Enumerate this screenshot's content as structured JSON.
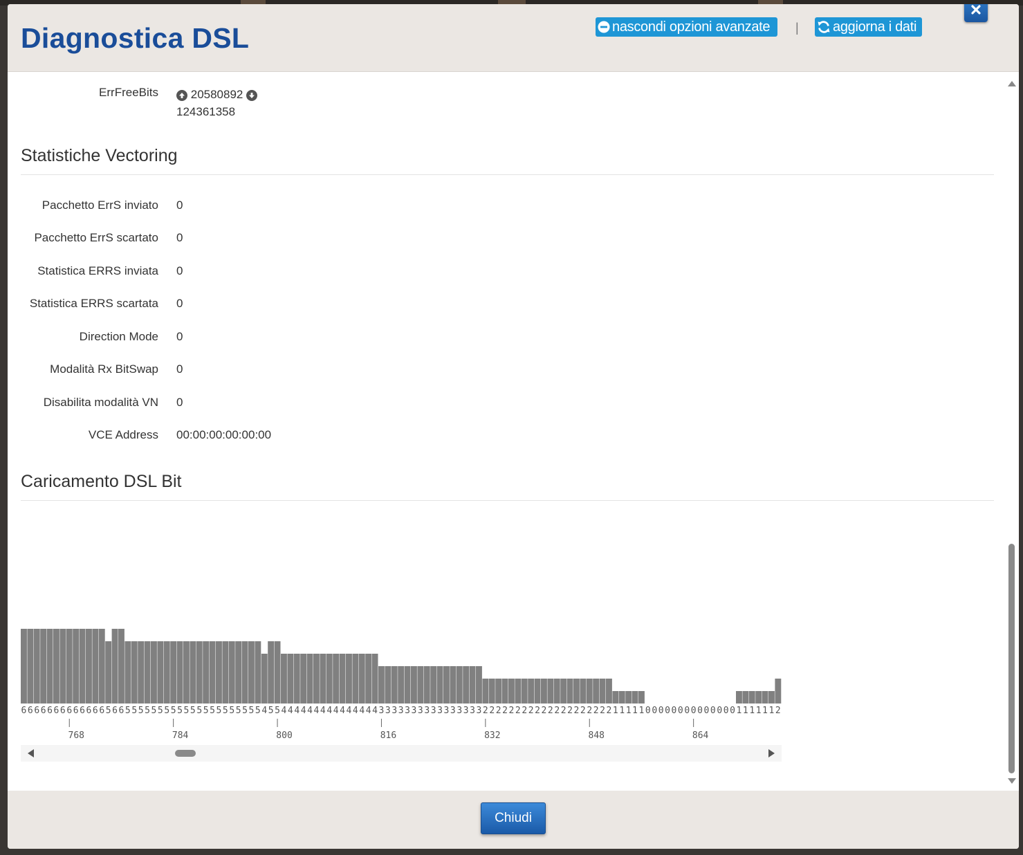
{
  "header": {
    "title": "Diagnostica DSL",
    "hide_advanced_label": "nascondi opzioni avanzate",
    "separator": "|",
    "refresh_label": "aggiorna i dati"
  },
  "errfree": {
    "label": "ErrFreeBits",
    "upstream": "20580892",
    "downstream": "124361358"
  },
  "vectoring": {
    "title": "Statistiche Vectoring",
    "rows": [
      {
        "label": "Pacchetto ErrS inviato",
        "value": "0"
      },
      {
        "label": "Pacchetto ErrS scartato",
        "value": "0"
      },
      {
        "label": "Statistica ERRS inviata",
        "value": "0"
      },
      {
        "label": "Statistica ERRS scartata",
        "value": "0"
      },
      {
        "label": "Direction Mode",
        "value": "0"
      },
      {
        "label": "Modalità Rx BitSwap",
        "value": "0"
      },
      {
        "label": "Disabilita modalità VN",
        "value": "0"
      },
      {
        "label": "VCE Address",
        "value": "00:00:00:00:00:00"
      }
    ]
  },
  "bitload": {
    "title": "Caricamento DSL Bit"
  },
  "chart_data": {
    "type": "bar",
    "x_start": 761,
    "tick_labels": [
      "768",
      "784",
      "800",
      "816",
      "832",
      "848",
      "864"
    ],
    "ticks": [
      768,
      784,
      800,
      816,
      832,
      848,
      864
    ],
    "values": [
      6,
      6,
      6,
      6,
      6,
      6,
      6,
      6,
      6,
      6,
      6,
      6,
      6,
      5,
      6,
      6,
      5,
      5,
      5,
      5,
      5,
      5,
      5,
      5,
      5,
      5,
      5,
      5,
      5,
      5,
      5,
      5,
      5,
      5,
      5,
      5,
      5,
      4,
      5,
      5,
      4,
      4,
      4,
      4,
      4,
      4,
      4,
      4,
      4,
      4,
      4,
      4,
      4,
      4,
      4,
      3,
      3,
      3,
      3,
      3,
      3,
      3,
      3,
      3,
      3,
      3,
      3,
      3,
      3,
      3,
      3,
      2,
      2,
      2,
      2,
      2,
      2,
      2,
      2,
      2,
      2,
      2,
      2,
      2,
      2,
      2,
      2,
      2,
      2,
      2,
      2,
      1,
      1,
      1,
      1,
      1,
      0,
      0,
      0,
      0,
      0,
      0,
      0,
      0,
      0,
      0,
      0,
      0,
      0,
      0,
      1,
      1,
      1,
      1,
      1,
      1,
      2
    ],
    "ylim": [
      0,
      15
    ]
  },
  "footer": {
    "close_label": "Chiudi"
  },
  "colors": {
    "title": "#1a4d99",
    "header_button": "#1e96d6",
    "bar": "#808080"
  },
  "icons": [
    "minus-circle-icon",
    "refresh-icon",
    "close-icon",
    "upload-icon",
    "download-icon"
  ]
}
